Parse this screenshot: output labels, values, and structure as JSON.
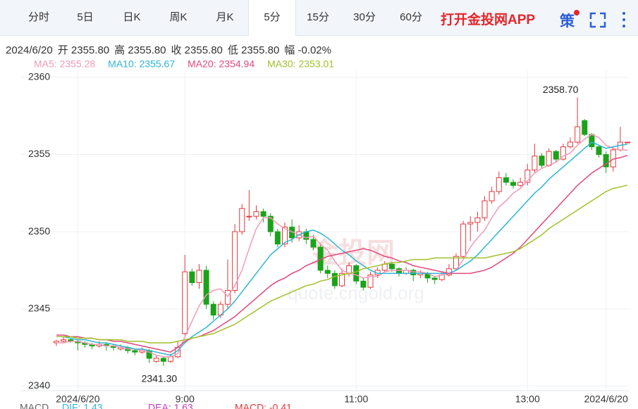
{
  "tabs": [
    "分时",
    "5日",
    "日K",
    "周K",
    "月K",
    "5分",
    "15分",
    "30分",
    "60分"
  ],
  "active_tab": 5,
  "app_link": "打开金投网APP",
  "strategy_icon": "策",
  "info": [
    "2024/6/20",
    "开 2355.80",
    "高 2355.80",
    "收 2355.80",
    "低 2355.80",
    "幅 -0.02%"
  ],
  "watermark": [
    "金投网",
    "quote.cngold.org"
  ],
  "macd": [
    "MACD",
    "DIF: 1.43",
    "DEA: 1.63",
    "MACD: -0.41"
  ],
  "chart_data": {
    "type": "candlestick",
    "ylim": [
      2339.7,
      2360.45
    ],
    "yticks": [
      2340,
      2345,
      2350,
      2355,
      2360
    ],
    "grid": true,
    "up_color": "#e4393c",
    "down_color": "#1aa31a",
    "high_label": "2358.70",
    "low_label": "2341.30",
    "categories": [
      null,
      null,
      null,
      "2024/6/20",
      null,
      null,
      null,
      null,
      null,
      null,
      null,
      null,
      null,
      null,
      null,
      null,
      null,
      null,
      "9:00",
      null,
      null,
      null,
      null,
      null,
      null,
      null,
      null,
      null,
      null,
      null,
      null,
      null,
      null,
      null,
      null,
      null,
      null,
      null,
      null,
      null,
      null,
      null,
      "11:00",
      null,
      null,
      null,
      null,
      null,
      null,
      null,
      null,
      null,
      null,
      null,
      null,
      null,
      null,
      null,
      null,
      null,
      null,
      null,
      null,
      null,
      null,
      null,
      "13:00",
      null,
      null,
      null,
      null,
      null,
      null,
      null,
      null,
      null,
      null,
      "2024/6/20",
      null,
      null,
      null
    ],
    "ohlc": [
      [
        2342.8,
        2343.0,
        2342.6,
        2342.9
      ],
      [
        2342.9,
        2343.2,
        2342.8,
        2343.0
      ],
      [
        2343.0,
        2343.1,
        2342.8,
        2342.9
      ],
      [
        2342.9,
        2343.0,
        2342.3,
        2342.8
      ],
      [
        2342.8,
        2342.9,
        2342.5,
        2342.7
      ],
      [
        2342.7,
        2342.8,
        2342.4,
        2342.6
      ],
      [
        2342.6,
        2342.9,
        2342.5,
        2342.7
      ],
      [
        2342.7,
        2342.8,
        2342.3,
        2342.6
      ],
      [
        2342.6,
        2342.7,
        2342.3,
        2342.5
      ],
      [
        2342.4,
        2342.7,
        2342.3,
        2342.5
      ],
      [
        2342.5,
        2342.6,
        2342.1,
        2342.3
      ],
      [
        2342.3,
        2342.4,
        2342.0,
        2342.2
      ],
      [
        2342.2,
        2342.5,
        2342.1,
        2342.3
      ],
      [
        2342.3,
        2342.4,
        2341.5,
        2341.8
      ],
      [
        2341.6,
        2342.0,
        2341.5,
        2341.8
      ],
      [
        2341.8,
        2341.9,
        2341.3,
        2341.6
      ],
      [
        2341.6,
        2342.1,
        2341.5,
        2341.9
      ],
      [
        2341.9,
        2342.9,
        2341.8,
        2342.5
      ],
      [
        2343.4,
        2348.5,
        2343.3,
        2347.4
      ],
      [
        2347.4,
        2347.6,
        2346.5,
        2346.7
      ],
      [
        2346.7,
        2347.9,
        2346.3,
        2347.5
      ],
      [
        2347.5,
        2347.8,
        2345.0,
        2345.3
      ],
      [
        2345.3,
        2345.5,
        2344.3,
        2344.6
      ],
      [
        2344.6,
        2345.5,
        2344.4,
        2345.3
      ],
      [
        2345.3,
        2348.2,
        2345.0,
        2346.2
      ],
      [
        2346.2,
        2350.5,
        2346.0,
        2350.0
      ],
      [
        2350.0,
        2351.8,
        2349.8,
        2351.5
      ],
      [
        2351.0,
        2352.7,
        2350.7,
        2351.0
      ],
      [
        2351.0,
        2351.7,
        2350.8,
        2351.3
      ],
      [
        2351.3,
        2351.5,
        2350.6,
        2351.0
      ],
      [
        2351.0,
        2351.2,
        2349.7,
        2350.0
      ],
      [
        2350.0,
        2350.2,
        2349.0,
        2349.2
      ],
      [
        2349.2,
        2350.6,
        2349.0,
        2350.3
      ],
      [
        2350.3,
        2350.8,
        2349.3,
        2349.6
      ],
      [
        2349.6,
        2350.4,
        2349.4,
        2350.0
      ],
      [
        2350.0,
        2350.2,
        2349.2,
        2349.5
      ],
      [
        2349.5,
        2349.8,
        2348.8,
        2349.0
      ],
      [
        2349.0,
        2349.2,
        2347.3,
        2347.5
      ],
      [
        2347.5,
        2347.8,
        2347.0,
        2347.3
      ],
      [
        2347.3,
        2347.5,
        2346.3,
        2346.5
      ],
      [
        2346.5,
        2347.6,
        2346.4,
        2347.3
      ],
      [
        2347.3,
        2348.0,
        2347.1,
        2347.8
      ],
      [
        2347.8,
        2347.9,
        2346.6,
        2346.8
      ],
      [
        2346.8,
        2347.0,
        2346.2,
        2346.4
      ],
      [
        2346.4,
        2347.4,
        2346.3,
        2347.2
      ],
      [
        2347.2,
        2347.7,
        2347.0,
        2347.5
      ],
      [
        2347.5,
        2348.1,
        2347.4,
        2347.9
      ],
      [
        2347.9,
        2348.0,
        2347.4,
        2347.6
      ],
      [
        2347.6,
        2347.7,
        2347.1,
        2347.3
      ],
      [
        2347.3,
        2347.7,
        2347.2,
        2347.5
      ],
      [
        2347.5,
        2347.6,
        2346.8,
        2347.2
      ],
      [
        2347.2,
        2347.5,
        2347.0,
        2347.3
      ],
      [
        2347.3,
        2347.4,
        2346.7,
        2347.0
      ],
      [
        2347.0,
        2347.1,
        2346.6,
        2346.9
      ],
      [
        2346.9,
        2347.4,
        2346.8,
        2347.2
      ],
      [
        2347.2,
        2347.9,
        2347.1,
        2347.6
      ],
      [
        2347.6,
        2348.6,
        2347.5,
        2348.4
      ],
      [
        2348.4,
        2350.7,
        2348.3,
        2350.5
      ],
      [
        2350.5,
        2351.0,
        2349.4,
        2350.6
      ],
      [
        2350.6,
        2351.3,
        2350.0,
        2350.9
      ],
      [
        2350.9,
        2352.3,
        2350.7,
        2352.0
      ],
      [
        2352.0,
        2352.9,
        2351.8,
        2352.6
      ],
      [
        2352.6,
        2353.9,
        2352.4,
        2353.5
      ],
      [
        2353.5,
        2353.8,
        2353.0,
        2353.2
      ],
      [
        2353.2,
        2353.4,
        2352.8,
        2353.0
      ],
      [
        2353.0,
        2353.5,
        2352.9,
        2353.2
      ],
      [
        2353.2,
        2354.4,
        2353.0,
        2354.0
      ],
      [
        2354.0,
        2355.7,
        2353.8,
        2354.9
      ],
      [
        2354.9,
        2355.1,
        2354.1,
        2354.3
      ],
      [
        2354.3,
        2355.4,
        2354.2,
        2355.2
      ],
      [
        2355.2,
        2355.3,
        2354.5,
        2354.7
      ],
      [
        2354.7,
        2355.7,
        2354.6,
        2355.5
      ],
      [
        2355.5,
        2356.1,
        2355.4,
        2355.8
      ],
      [
        2355.8,
        2358.7,
        2355.7,
        2356.8
      ],
      [
        2357.2,
        2357.3,
        2356.2,
        2356.3
      ],
      [
        2356.3,
        2356.4,
        2355.3,
        2355.5
      ],
      [
        2355.5,
        2355.6,
        2354.8,
        2355.0
      ],
      [
        2355.0,
        2355.2,
        2353.8,
        2354.2
      ],
      [
        2354.2,
        2355.5,
        2353.9,
        2355.3
      ],
      [
        2355.3,
        2356.8,
        2355.2,
        2355.8
      ],
      [
        2355.8,
        2355.8,
        2355.8,
        2355.8
      ]
    ],
    "series": [
      {
        "name": "MA5",
        "legend_label": "MA5: 2355.28",
        "color": "#f29bb8",
        "values": [
          2342.8,
          2342.8,
          2342.9,
          2342.9,
          2342.8,
          2342.7,
          2342.7,
          2342.6,
          2342.6,
          2342.5,
          2342.4,
          2342.4,
          2342.3,
          2342.2,
          2342.0,
          2341.9,
          2341.9,
          2342.1,
          2343.2,
          2344.2,
          2345.2,
          2345.9,
          2346.2,
          2346.3,
          2345.8,
          2346.5,
          2347.5,
          2348.9,
          2350.2,
          2350.9,
          2350.9,
          2350.5,
          2350.2,
          2350.0,
          2349.8,
          2349.6,
          2349.7,
          2349.2,
          2348.8,
          2348.1,
          2347.5,
          2347.3,
          2347.2,
          2347.0,
          2347.1,
          2347.1,
          2347.4,
          2347.5,
          2347.5,
          2347.5,
          2347.4,
          2347.4,
          2347.3,
          2347.1,
          2347.2,
          2347.3,
          2347.5,
          2348.2,
          2349.0,
          2349.6,
          2350.1,
          2350.9,
          2351.6,
          2352.0,
          2352.5,
          2352.8,
          2353.3,
          2353.8,
          2354.1,
          2354.3,
          2354.5,
          2354.9,
          2355.1,
          2355.6,
          2356.0,
          2356.3,
          2356.1,
          2355.6,
          2355.4,
          2355.3,
          2355.28
        ]
      },
      {
        "name": "MA10",
        "legend_label": "MA10: 2355.67",
        "color": "#2fb5d4",
        "values": [
          2343.2,
          2343.2,
          2343.1,
          2343.0,
          2343.0,
          2342.9,
          2342.8,
          2342.8,
          2342.7,
          2342.6,
          2342.5,
          2342.4,
          2342.4,
          2342.3,
          2342.2,
          2342.1,
          2342.0,
          2342.3,
          2342.8,
          2343.2,
          2343.5,
          2343.8,
          2344.2,
          2344.6,
          2345.0,
          2345.5,
          2346.1,
          2346.7,
          2347.3,
          2347.9,
          2348.5,
          2348.9,
          2349.3,
          2349.5,
          2349.8,
          2350.0,
          2350.1,
          2349.9,
          2349.6,
          2349.2,
          2348.8,
          2348.5,
          2348.1,
          2347.8,
          2347.5,
          2347.3,
          2347.3,
          2347.3,
          2347.3,
          2347.3,
          2347.3,
          2347.3,
          2347.3,
          2347.3,
          2347.3,
          2347.3,
          2347.5,
          2347.8,
          2348.1,
          2348.5,
          2349.0,
          2349.5,
          2350.0,
          2350.5,
          2351.0,
          2351.5,
          2352.0,
          2352.5,
          2352.9,
          2353.4,
          2353.8,
          2354.2,
          2354.6,
          2355.0,
          2355.4,
          2355.8,
          2355.6,
          2355.4,
          2355.5,
          2355.6,
          2355.67
        ]
      },
      {
        "name": "MA20",
        "legend_label": "MA20: 2354.94",
        "color": "#e2487c",
        "values": [
          2343.3,
          2343.3,
          2343.2,
          2343.2,
          2343.1,
          2343.1,
          2343.0,
          2343.0,
          2342.9,
          2342.9,
          2342.8,
          2342.7,
          2342.6,
          2342.5,
          2342.4,
          2342.3,
          2342.2,
          2342.5,
          2342.9,
          2343.1,
          2343.2,
          2343.4,
          2343.6,
          2343.9,
          2344.2,
          2344.5,
          2344.9,
          2345.3,
          2345.7,
          2346.1,
          2346.5,
          2346.8,
          2347.0,
          2347.3,
          2347.5,
          2347.8,
          2348.0,
          2348.2,
          2348.4,
          2348.5,
          2348.6,
          2348.7,
          2348.8,
          2348.9,
          2348.8,
          2348.6,
          2348.4,
          2348.3,
          2348.1,
          2348.0,
          2347.8,
          2347.7,
          2347.6,
          2347.5,
          2347.4,
          2347.3,
          2347.3,
          2347.3,
          2347.3,
          2347.4,
          2347.5,
          2347.7,
          2348.0,
          2348.3,
          2348.6,
          2349.0,
          2349.5,
          2350.0,
          2350.5,
          2351.0,
          2351.5,
          2352.0,
          2352.5,
          2353.0,
          2353.4,
          2353.8,
          2354.1,
          2354.4,
          2354.7,
          2354.8,
          2354.94
        ]
      },
      {
        "name": "MA30",
        "legend_label": "MA30: 2353.01",
        "color": "#a2c02a",
        "values": [
          2343.2,
          2343.2,
          2343.2,
          2343.1,
          2343.1,
          2343.1,
          2343.0,
          2343.0,
          2343.0,
          2343.0,
          2342.9,
          2342.9,
          2342.9,
          2342.8,
          2342.8,
          2342.8,
          2342.8,
          2342.9,
          2343.0,
          2343.1,
          2343.2,
          2343.3,
          2343.4,
          2343.6,
          2343.8,
          2344.0,
          2344.3,
          2344.6,
          2344.9,
          2345.2,
          2345.5,
          2345.7,
          2345.9,
          2346.1,
          2346.3,
          2346.5,
          2346.6,
          2346.8,
          2346.9,
          2347.1,
          2347.2,
          2347.3,
          2347.4,
          2347.6,
          2347.7,
          2347.8,
          2347.9,
          2348.0,
          2348.0,
          2348.1,
          2348.2,
          2348.2,
          2348.2,
          2348.3,
          2348.3,
          2348.3,
          2348.3,
          2348.3,
          2348.3,
          2348.3,
          2348.3,
          2348.4,
          2348.5,
          2348.6,
          2348.7,
          2348.9,
          2349.2,
          2349.5,
          2349.8,
          2350.2,
          2350.5,
          2350.8,
          2351.1,
          2351.4,
          2351.7,
          2352.0,
          2352.3,
          2352.6,
          2352.8,
          2352.9,
          2353.01
        ]
      }
    ]
  }
}
